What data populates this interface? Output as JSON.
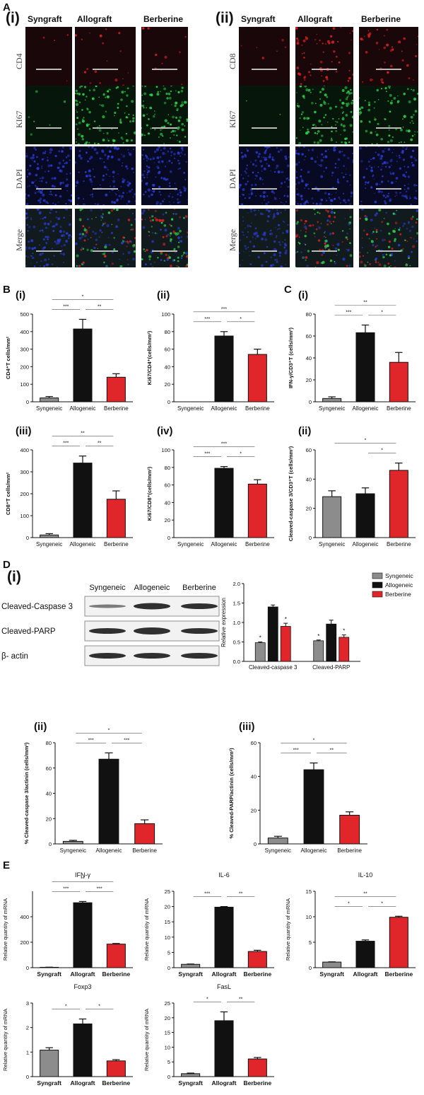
{
  "colors": {
    "syn": "#8c8c8c",
    "allo": "#111111",
    "berb": "#e0262b",
    "merge_red": "#d22",
    "ki67_green": "#2fd14a",
    "dapi_blue": "#2a3acf"
  },
  "panel_A": {
    "letter": "A",
    "sub_i": "(i)",
    "sub_ii": "(ii)",
    "col_headers": [
      "Syngraft",
      "Allograft",
      "Berberine"
    ],
    "rows_i": [
      "CD4",
      "KI67",
      "DAPI",
      "Merge"
    ],
    "rows_ii": [
      "CD8",
      "KI67",
      "DAPI",
      "Merge"
    ]
  },
  "panel_B": {
    "letter": "B"
  },
  "panel_C": {
    "letter": "C"
  },
  "panel_D": {
    "letter": "D",
    "blot_headers": [
      "Syngeneic",
      "Allogeneic",
      "Berberine"
    ],
    "blot_rows": [
      "Cleaved-Caspase 3",
      "Cleaved-PARP",
      "β- actin"
    ],
    "legend": [
      "Syngeneic",
      "Allogeneic",
      "Berberine"
    ]
  },
  "panel_E": {
    "letter": "E"
  },
  "chart_data": [
    {
      "id": "B_i",
      "label": "(i)",
      "type": "bar",
      "categories": [
        "Syngeneic",
        "Allogeneic",
        "Berberine"
      ],
      "values": [
        22,
        415,
        140
      ],
      "errors": [
        8,
        55,
        20
      ],
      "ylabel": "CD4⁺T cells/mm²",
      "ylim": [
        0,
        500
      ],
      "yticks": [
        0,
        100,
        200,
        300,
        400,
        500
      ],
      "sig": [
        {
          "a": 0,
          "b": 1,
          "t": "***",
          "lvl": 0
        },
        {
          "a": 1,
          "b": 2,
          "t": "**",
          "lvl": 0
        },
        {
          "a": 0,
          "b": 2,
          "t": "*",
          "lvl": 1
        }
      ]
    },
    {
      "id": "B_ii",
      "label": "(ii)",
      "type": "bar",
      "categories": [
        "Syngeneic",
        "Allogeneic",
        "Berberine"
      ],
      "values": [
        0,
        75,
        54
      ],
      "errors": [
        0,
        5,
        6
      ],
      "ylabel": "Ki67/CD4⁺(cells/mm²)",
      "ylim": [
        0,
        100
      ],
      "yticks": [
        0,
        20,
        40,
        60,
        80,
        100
      ],
      "sig": [
        {
          "a": 0,
          "b": 1,
          "t": "***",
          "lvl": 0
        },
        {
          "a": 1,
          "b": 2,
          "t": "*",
          "lvl": 0
        },
        {
          "a": 0,
          "b": 2,
          "t": "***",
          "lvl": 1
        }
      ]
    },
    {
      "id": "C_i",
      "label": "(i)",
      "type": "bar",
      "categories": [
        "Syngeneic",
        "Allogeneic",
        "Berberine"
      ],
      "values": [
        3,
        63,
        36
      ],
      "errors": [
        1.5,
        7,
        9
      ],
      "ylabel": "IFN-γ/CD3⁺T (cells/mm²)",
      "ylim": [
        0,
        80
      ],
      "yticks": [
        0,
        20,
        40,
        60,
        80
      ],
      "sig": [
        {
          "a": 0,
          "b": 1,
          "t": "***",
          "lvl": 0
        },
        {
          "a": 1,
          "b": 2,
          "t": "*",
          "lvl": 0
        },
        {
          "a": 0,
          "b": 2,
          "t": "**",
          "lvl": 1
        }
      ]
    },
    {
      "id": "B_iii",
      "label": "(iii)",
      "type": "bar",
      "categories": [
        "Syngeneic",
        "Allogeneic",
        "Berberine"
      ],
      "values": [
        12,
        340,
        175
      ],
      "errors": [
        6,
        32,
        38
      ],
      "ylabel": "CD8⁺T cells/mm²",
      "ylim": [
        0,
        400
      ],
      "yticks": [
        0,
        100,
        200,
        300,
        400
      ],
      "sig": [
        {
          "a": 0,
          "b": 1,
          "t": "***",
          "lvl": 0
        },
        {
          "a": 1,
          "b": 2,
          "t": "**",
          "lvl": 0
        },
        {
          "a": 0,
          "b": 2,
          "t": "**",
          "lvl": 1
        }
      ]
    },
    {
      "id": "B_iv",
      "label": "(iv)",
      "type": "bar",
      "categories": [
        "Syngeneic",
        "Allogeneic",
        "Berberine"
      ],
      "values": [
        0,
        79,
        61
      ],
      "errors": [
        0,
        2,
        5
      ],
      "ylabel": "Ki67/CD8⁺(cells/mm²)",
      "ylim": [
        0,
        100
      ],
      "yticks": [
        0,
        20,
        40,
        60,
        80,
        100
      ],
      "sig": [
        {
          "a": 0,
          "b": 1,
          "t": "***",
          "lvl": 0
        },
        {
          "a": 1,
          "b": 2,
          "t": "*",
          "lvl": 0
        },
        {
          "a": 0,
          "b": 2,
          "t": "***",
          "lvl": 1
        }
      ]
    },
    {
      "id": "C_ii",
      "label": "(ii)",
      "type": "bar",
      "categories": [
        "Syngeneic",
        "Allogeneic",
        "Berberine"
      ],
      "values": [
        28,
        30,
        46
      ],
      "errors": [
        4,
        4,
        5
      ],
      "ylabel": "Cleaved-caspase 3/CD3⁺T (cells/mm²)",
      "ylim": [
        0,
        60
      ],
      "yticks": [
        0,
        20,
        40,
        60
      ],
      "sig": [
        {
          "a": 1,
          "b": 2,
          "t": "*",
          "lvl": 0
        },
        {
          "a": 0,
          "b": 2,
          "t": "*",
          "lvl": 1
        }
      ]
    },
    {
      "id": "D_grouped",
      "type": "bar",
      "groups": [
        "Cleaved-caspase 3",
        "Cleaved-PARP"
      ],
      "series": [
        {
          "name": "Syngeneic",
          "values": [
            0.48,
            0.53
          ],
          "errors": [
            0.02,
            0.02
          ]
        },
        {
          "name": "Allogeneic",
          "values": [
            1.4,
            0.96
          ],
          "errors": [
            0.05,
            0.1
          ]
        },
        {
          "name": "Berberine",
          "values": [
            0.9,
            0.62
          ],
          "errors": [
            0.08,
            0.06
          ]
        }
      ],
      "ylabel": "Relative expression",
      "ylim": [
        0,
        2.0
      ],
      "yticks": [
        "0.0",
        "0.5",
        "1.0",
        "1.5",
        "2.0"
      ],
      "stars": [
        [
          "*",
          "",
          "*"
        ],
        [
          "*",
          "",
          "*"
        ]
      ]
    },
    {
      "id": "D_ii",
      "label": "(ii)",
      "type": "bar",
      "categories": [
        "Syngeneic",
        "Allogeneic",
        "Berberine"
      ],
      "values": [
        2,
        67,
        16
      ],
      "errors": [
        0.8,
        5,
        3
      ],
      "ylabel": "% Cleaved-caspase 3/actinin (cells/mm²)",
      "ylim": [
        0,
        80
      ],
      "yticks": [
        0,
        20,
        40,
        60,
        80
      ],
      "sig": [
        {
          "a": 0,
          "b": 1,
          "t": "***",
          "lvl": 0
        },
        {
          "a": 1,
          "b": 2,
          "t": "***",
          "lvl": 0
        },
        {
          "a": 0,
          "b": 2,
          "t": "*",
          "lvl": 1
        }
      ]
    },
    {
      "id": "D_iii",
      "label": "(iii)",
      "type": "bar",
      "categories": [
        "Syngeneic",
        "Allogeneic",
        "Berberine"
      ],
      "values": [
        3.5,
        44,
        17
      ],
      "errors": [
        1,
        4,
        2
      ],
      "ylabel": "% Cleaved-PARP/actinin  (cells/mm²)",
      "ylim": [
        0,
        60
      ],
      "yticks": [
        0,
        20,
        40,
        60
      ],
      "sig": [
        {
          "a": 0,
          "b": 1,
          "t": "***",
          "lvl": 0
        },
        {
          "a": 1,
          "b": 2,
          "t": "**",
          "lvl": 0
        },
        {
          "a": 0,
          "b": 2,
          "t": "*",
          "lvl": 1
        }
      ]
    },
    {
      "id": "E_ifn",
      "title": "IFN-γ",
      "type": "bar",
      "categories": [
        "Syngraft",
        "Allograft",
        "Berberine"
      ],
      "values": [
        3,
        510,
        185
      ],
      "errors": [
        1,
        10,
        5
      ],
      "ylabel": "Relative quantity of mRNA",
      "ylim": [
        0,
        600
      ],
      "yticks": [
        0,
        200,
        400
      ],
      "sig": [
        {
          "a": 0,
          "b": 1,
          "t": "***",
          "lvl": 0
        },
        {
          "a": 1,
          "b": 2,
          "t": "***",
          "lvl": 0
        },
        {
          "a": 0,
          "b": 2,
          "t": "**",
          "lvl": 1
        }
      ]
    },
    {
      "id": "E_il6",
      "title": "IL-6",
      "type": "bar",
      "categories": [
        "Syngraft",
        "Allograft",
        "Berberine"
      ],
      "values": [
        1.1,
        19.8,
        5.3
      ],
      "errors": [
        0.1,
        0.2,
        0.4
      ],
      "ylabel": "Relative quantity of mRNA",
      "ylim": [
        0,
        25
      ],
      "yticks": [
        0,
        5,
        10,
        15,
        20,
        25
      ],
      "sig": [
        {
          "a": 0,
          "b": 1,
          "t": "***",
          "lvl": 0
        },
        {
          "a": 1,
          "b": 2,
          "t": "**",
          "lvl": 0
        }
      ]
    },
    {
      "id": "E_il10",
      "title": "IL-10",
      "type": "bar",
      "categories": [
        "Syngraft",
        "Allograft",
        "Berberine"
      ],
      "values": [
        1.1,
        5.2,
        9.9
      ],
      "errors": [
        0.05,
        0.25,
        0.2
      ],
      "ylabel": "Relative quantity of mRNA",
      "ylim": [
        0,
        15
      ],
      "yticks": [
        0,
        5,
        10,
        15
      ],
      "sig": [
        {
          "a": 0,
          "b": 1,
          "t": "*",
          "lvl": 0
        },
        {
          "a": 1,
          "b": 2,
          "t": "*",
          "lvl": 0
        },
        {
          "a": 0,
          "b": 2,
          "t": "**",
          "lvl": 1
        }
      ]
    },
    {
      "id": "E_foxp3",
      "title": "Foxp3",
      "type": "bar",
      "categories": [
        "Syngraft",
        "Allograft",
        "Berberine"
      ],
      "values": [
        1.08,
        2.15,
        0.64
      ],
      "errors": [
        0.1,
        0.2,
        0.05
      ],
      "ylabel": "Relative quantity of mRNA",
      "ylim": [
        0,
        3
      ],
      "yticks": [
        0,
        1,
        2,
        3
      ],
      "sig": [
        {
          "a": 0,
          "b": 1,
          "t": "*",
          "lvl": 0
        },
        {
          "a": 1,
          "b": 2,
          "t": "*",
          "lvl": 0
        }
      ]
    },
    {
      "id": "E_fasl",
      "title": "FasL",
      "type": "bar",
      "categories": [
        "Syngraft",
        "Allograft",
        "Berberine"
      ],
      "values": [
        1,
        19,
        6
      ],
      "errors": [
        0.2,
        3,
        0.5
      ],
      "ylabel": "Relative quantity of mRNA",
      "ylim": [
        0,
        25
      ],
      "yticks": [
        0,
        5,
        10,
        15,
        20,
        25
      ],
      "sig": [
        {
          "a": 0,
          "b": 1,
          "t": "*",
          "lvl": 0
        },
        {
          "a": 1,
          "b": 2,
          "t": "**",
          "lvl": 0
        }
      ]
    }
  ]
}
